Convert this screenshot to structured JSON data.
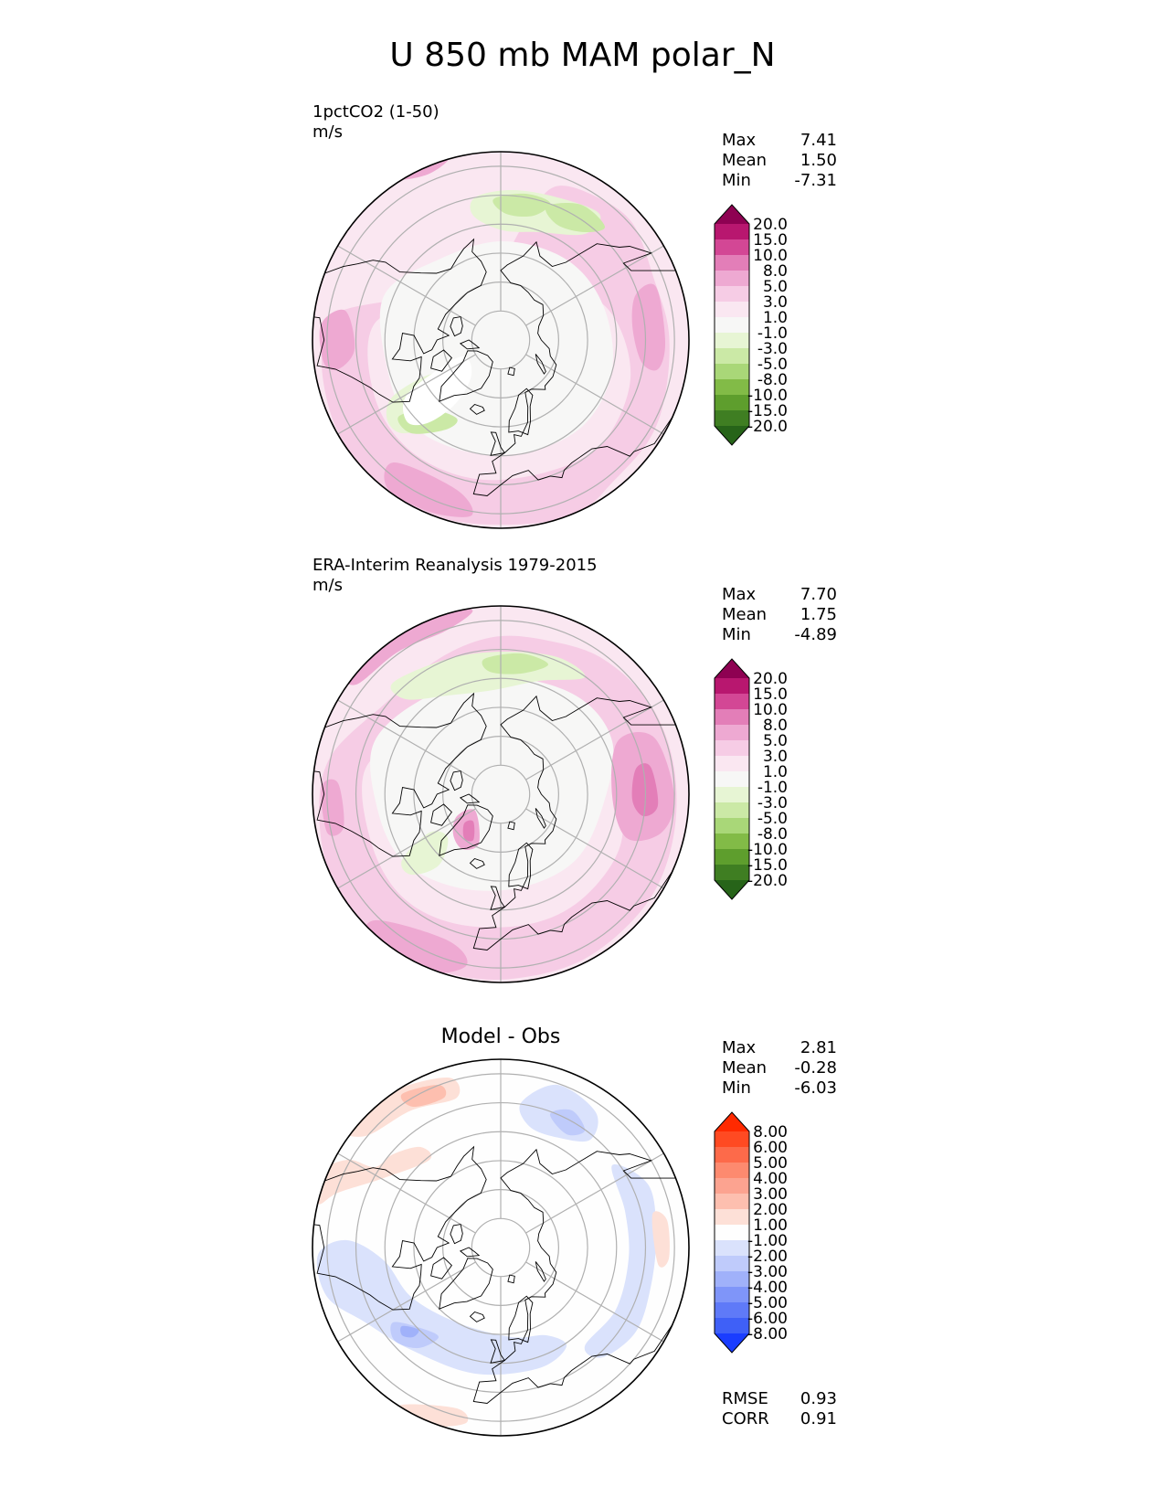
{
  "title": "U 850 mb MAM polar_N",
  "panels": [
    {
      "id": "model",
      "title": "1pctCO2 (1-50)",
      "units": "m/s",
      "stats": [
        {
          "label": "Max",
          "value": "7.41"
        },
        {
          "label": "Mean",
          "value": "1.50"
        },
        {
          "label": "Min",
          "value": "-7.31"
        }
      ]
    },
    {
      "id": "obs",
      "title": "ERA-Interim Reanalysis 1979-2015",
      "units": "m/s",
      "stats": [
        {
          "label": "Max",
          "value": "7.70"
        },
        {
          "label": "Mean",
          "value": "1.75"
        },
        {
          "label": "Min",
          "value": "-4.89"
        }
      ]
    },
    {
      "id": "diff",
      "title": "Model - Obs",
      "stats": [
        {
          "label": "Max",
          "value": "2.81"
        },
        {
          "label": "Mean",
          "value": "-0.28"
        },
        {
          "label": "Min",
          "value": "-6.03"
        }
      ]
    }
  ],
  "bottom_stats": [
    {
      "label": "RMSE",
      "value": "0.93"
    },
    {
      "label": "CORR",
      "value": "0.91"
    }
  ],
  "chart_data": [
    {
      "type": "heatmap",
      "projection": "north-polar-stereographic",
      "title": "1pctCO2 (1-50)",
      "units": "m/s",
      "colorbar": {
        "levels": [
          "20.0",
          "15.0",
          "10.0",
          "8.0",
          "5.0",
          "3.0",
          "1.0",
          "-1.0",
          "-3.0",
          "-5.0",
          "-8.0",
          "-10.0",
          "-15.0",
          "-20.0"
        ],
        "colors": [
          "#8e0152",
          "#b8176f",
          "#d34795",
          "#e37eb8",
          "#eea9d2",
          "#f6cce5",
          "#fae7f1",
          "#f7f7f6",
          "#e7f5d4",
          "#cbe9a6",
          "#a9d778",
          "#82bb47",
          "#5e9e2d",
          "#3f7e22",
          "#276419"
        ],
        "extend": "both"
      },
      "stats": {
        "max": 7.41,
        "mean": 1.5,
        "min": -7.31
      }
    },
    {
      "type": "heatmap",
      "projection": "north-polar-stereographic",
      "title": "ERA-Interim Reanalysis 1979-2015",
      "units": "m/s",
      "colorbar": {
        "levels": [
          "20.0",
          "15.0",
          "10.0",
          "8.0",
          "5.0",
          "3.0",
          "1.0",
          "-1.0",
          "-3.0",
          "-5.0",
          "-8.0",
          "-10.0",
          "-15.0",
          "-20.0"
        ],
        "colors": [
          "#8e0152",
          "#b8176f",
          "#d34795",
          "#e37eb8",
          "#eea9d2",
          "#f6cce5",
          "#fae7f1",
          "#f7f7f6",
          "#e7f5d4",
          "#cbe9a6",
          "#a9d778",
          "#82bb47",
          "#5e9e2d",
          "#3f7e22",
          "#276419"
        ],
        "extend": "both"
      },
      "stats": {
        "max": 7.7,
        "mean": 1.75,
        "min": -4.89
      }
    },
    {
      "type": "heatmap",
      "projection": "north-polar-stereographic",
      "title": "Model - Obs",
      "colorbar": {
        "levels": [
          "8.00",
          "6.00",
          "5.00",
          "4.00",
          "3.00",
          "2.00",
          "1.00",
          "-1.00",
          "-2.00",
          "-3.00",
          "-4.00",
          "-5.00",
          "-6.00",
          "-8.00"
        ],
        "colors": [
          "#ff2a00",
          "#ff4a22",
          "#fd6a4a",
          "#fd8a6f",
          "#fca390",
          "#fdbfaf",
          "#fde0d7",
          "#fefefe",
          "#dae2fc",
          "#bfcbfb",
          "#a0b1fa",
          "#7f95f9",
          "#5f7af8",
          "#3f60f7",
          "#1a3dff"
        ],
        "extend": "both"
      },
      "stats": {
        "max": 2.81,
        "mean": -0.28,
        "min": -6.03,
        "rmse": 0.93,
        "corr": 0.91
      }
    }
  ]
}
